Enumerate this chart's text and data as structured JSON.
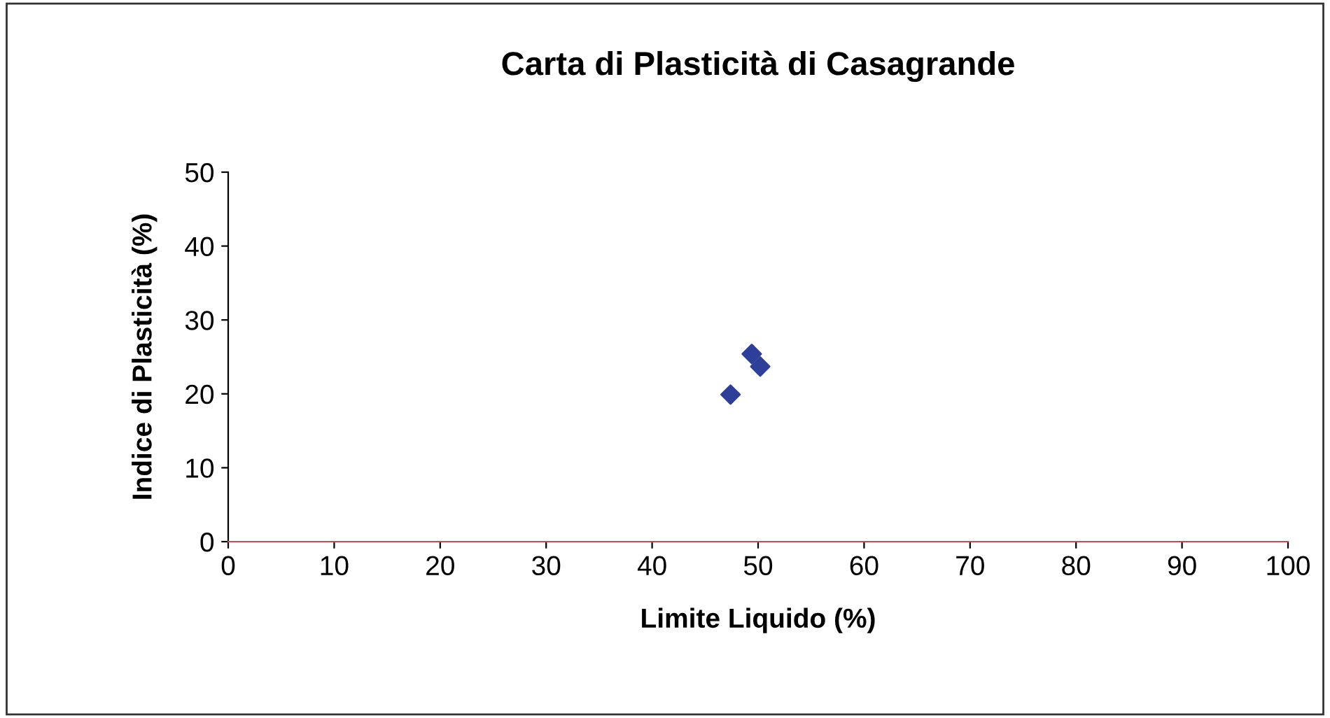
{
  "chart_data": {
    "type": "scatter",
    "title": "Carta di Plasticità di Casagrande",
    "xlabel": "Limite Liquido (%)",
    "ylabel": "Indice di Plasticità (%)",
    "x": [
      47.4,
      49.4,
      50.2
    ],
    "values": [
      19.9,
      25.4,
      23.7
    ],
    "color": "#2e3f9a",
    "marker": "diamond",
    "xlim": [
      0,
      100
    ],
    "xticks": [
      0,
      10,
      20,
      30,
      40,
      50,
      60,
      70,
      80,
      90,
      100
    ],
    "ylim": [
      0,
      50
    ],
    "yticks": [
      0,
      10,
      20,
      30,
      40,
      50
    ],
    "grid": false,
    "legend": false
  }
}
